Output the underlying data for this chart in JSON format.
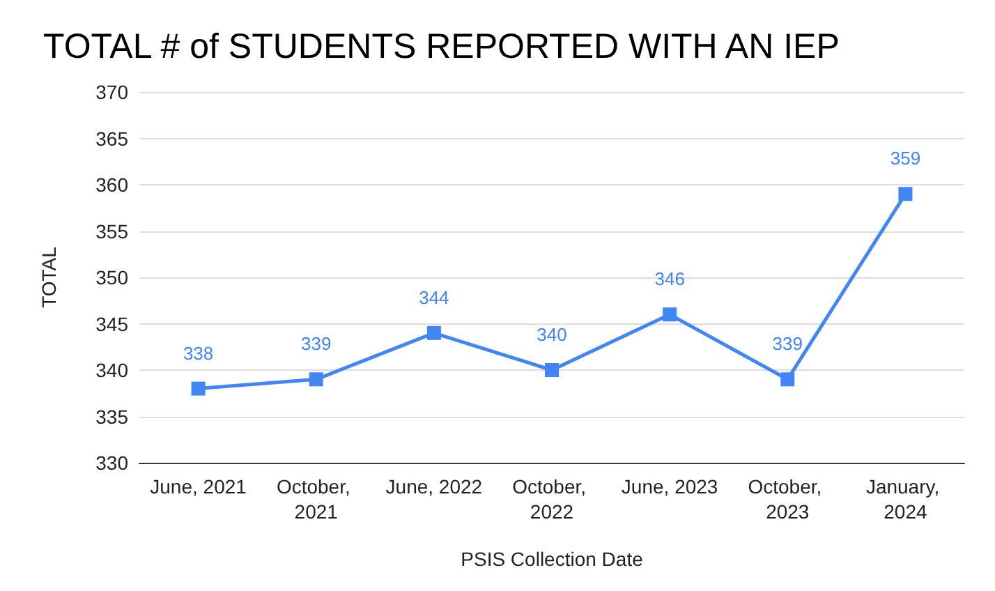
{
  "chart_data": {
    "type": "line",
    "title": "TOTAL # of STUDENTS REPORTED WITH AN IEP",
    "xlabel": "PSIS Collection Date",
    "ylabel": "TOTAL",
    "categories": [
      "June, 2021",
      "October, 2021",
      "June, 2022",
      "October, 2022",
      "June, 2023",
      "October, 2023",
      "January, 2024"
    ],
    "series": [
      {
        "color": "#4285f4",
        "values": [
          338,
          339,
          344,
          340,
          346,
          339,
          359
        ]
      }
    ],
    "ylim": [
      330,
      370
    ],
    "yticks": [
      330,
      335,
      340,
      345,
      350,
      355,
      360,
      365,
      370
    ],
    "grid": "y",
    "marker": "square",
    "line_style": "solid",
    "data_labels": true
  }
}
